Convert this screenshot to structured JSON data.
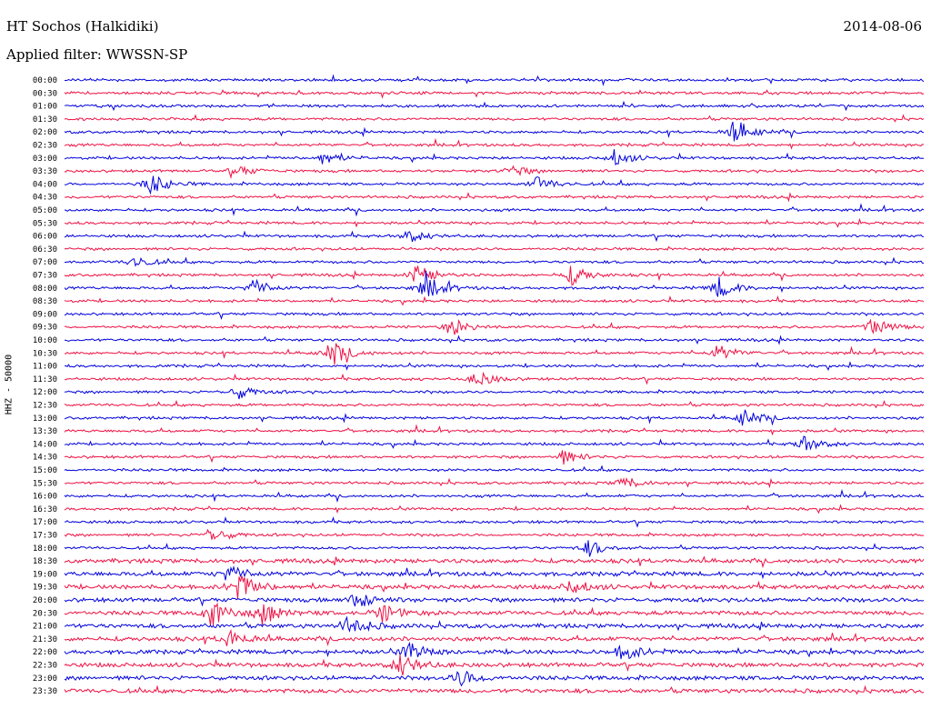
{
  "header": {
    "station": "HT Sochos (Halkidiki)",
    "date": "2014-08-06",
    "filter": "Applied filter: WWSSN-SP"
  },
  "chart_data": {
    "type": "line",
    "ylabel": "HHZ - 50000",
    "xlabel": "",
    "title": "HT Sochos (Halkidiki)",
    "colors": [
      "#0000dd",
      "#ee1144"
    ],
    "row_labels": [
      "00:00",
      "00:30",
      "01:00",
      "01:30",
      "02:00",
      "02:30",
      "03:00",
      "03:30",
      "04:00",
      "04:30",
      "05:00",
      "05:30",
      "06:00",
      "06:30",
      "07:00",
      "07:30",
      "08:00",
      "08:30",
      "09:00",
      "09:30",
      "10:00",
      "10:30",
      "11:00",
      "11:30",
      "12:00",
      "12:30",
      "13:00",
      "13:30",
      "14:00",
      "14:30",
      "15:00",
      "15:30",
      "16:00",
      "16:30",
      "17:00",
      "17:30",
      "18:00",
      "18:30",
      "19:00",
      "19:30",
      "20:00",
      "20:30",
      "21:00",
      "21:30",
      "22:00",
      "22:30",
      "23:00",
      "23:30"
    ],
    "events": [
      {
        "row": 4,
        "pos": 0.78,
        "amp": 14
      },
      {
        "row": 6,
        "pos": 0.3,
        "amp": 7
      },
      {
        "row": 6,
        "pos": 0.64,
        "amp": 9
      },
      {
        "row": 7,
        "pos": 0.2,
        "amp": 6
      },
      {
        "row": 7,
        "pos": 0.52,
        "amp": 6
      },
      {
        "row": 8,
        "pos": 0.1,
        "amp": 12
      },
      {
        "row": 8,
        "pos": 0.55,
        "amp": 8
      },
      {
        "row": 12,
        "pos": 0.4,
        "amp": 7
      },
      {
        "row": 14,
        "pos": 0.08,
        "amp": 7
      },
      {
        "row": 15,
        "pos": 0.41,
        "amp": 12
      },
      {
        "row": 15,
        "pos": 0.59,
        "amp": 11
      },
      {
        "row": 16,
        "pos": 0.22,
        "amp": 10
      },
      {
        "row": 16,
        "pos": 0.42,
        "amp": 14
      },
      {
        "row": 16,
        "pos": 0.76,
        "amp": 12
      },
      {
        "row": 19,
        "pos": 0.45,
        "amp": 10
      },
      {
        "row": 19,
        "pos": 0.94,
        "amp": 12
      },
      {
        "row": 21,
        "pos": 0.31,
        "amp": 16
      },
      {
        "row": 21,
        "pos": 0.76,
        "amp": 9
      },
      {
        "row": 23,
        "pos": 0.48,
        "amp": 9
      },
      {
        "row": 24,
        "pos": 0.2,
        "amp": 8
      },
      {
        "row": 26,
        "pos": 0.79,
        "amp": 10
      },
      {
        "row": 28,
        "pos": 0.86,
        "amp": 9
      },
      {
        "row": 29,
        "pos": 0.58,
        "amp": 8
      },
      {
        "row": 31,
        "pos": 0.65,
        "amp": 7
      },
      {
        "row": 35,
        "pos": 0.17,
        "amp": 9
      },
      {
        "row": 36,
        "pos": 0.61,
        "amp": 9
      },
      {
        "row": 38,
        "pos": 0.19,
        "amp": 10
      },
      {
        "row": 39,
        "pos": 0.2,
        "amp": 18
      },
      {
        "row": 39,
        "pos": 0.59,
        "amp": 8
      },
      {
        "row": 40,
        "pos": 0.34,
        "amp": 10
      },
      {
        "row": 41,
        "pos": 0.17,
        "amp": 15
      },
      {
        "row": 41,
        "pos": 0.23,
        "amp": 12
      },
      {
        "row": 41,
        "pos": 0.37,
        "amp": 10
      },
      {
        "row": 42,
        "pos": 0.33,
        "amp": 12
      },
      {
        "row": 43,
        "pos": 0.19,
        "amp": 10
      },
      {
        "row": 44,
        "pos": 0.4,
        "amp": 10
      },
      {
        "row": 44,
        "pos": 0.65,
        "amp": 10
      },
      {
        "row": 45,
        "pos": 0.39,
        "amp": 12
      },
      {
        "row": 46,
        "pos": 0.46,
        "amp": 9
      }
    ]
  }
}
